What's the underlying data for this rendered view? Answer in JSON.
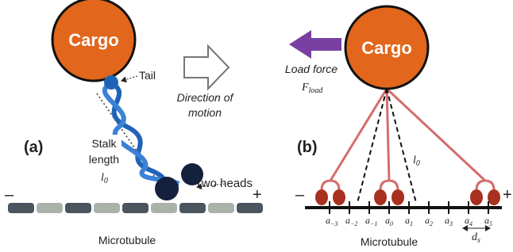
{
  "panel_a": {
    "label": "(a)",
    "cargo": "Cargo",
    "tail": "Tail",
    "direction": [
      "Direction of",
      "motion"
    ],
    "stalk": [
      "Stalk",
      "length"
    ],
    "stalk_symbol": {
      "base": "l",
      "sub": "0"
    },
    "heads": "Two heads",
    "minus": "–",
    "plus": "+",
    "microtubule": "Microtubule"
  },
  "panel_b": {
    "label": "(b)",
    "cargo": "Cargo",
    "load_force": "Load force",
    "force_symbol": {
      "base": "F",
      "sub": "load"
    },
    "length_symbol": {
      "base": "l",
      "sub": "0"
    },
    "minus": "–",
    "plus": "+",
    "sites": [
      {
        "base": "a",
        "sub": "−3"
      },
      {
        "base": "a",
        "sub": "−2"
      },
      {
        "base": "a",
        "sub": "−1"
      },
      {
        "base": "a",
        "sub": "0"
      },
      {
        "base": "a",
        "sub": "1"
      },
      {
        "base": "a",
        "sub": "2"
      },
      {
        "base": "a",
        "sub": "3"
      },
      {
        "base": "a",
        "sub": "4"
      },
      {
        "base": "a",
        "sub": "5"
      }
    ],
    "spacing_symbol": {
      "base": "d",
      "sub": "s"
    },
    "microtubule": "Microtubule"
  }
}
